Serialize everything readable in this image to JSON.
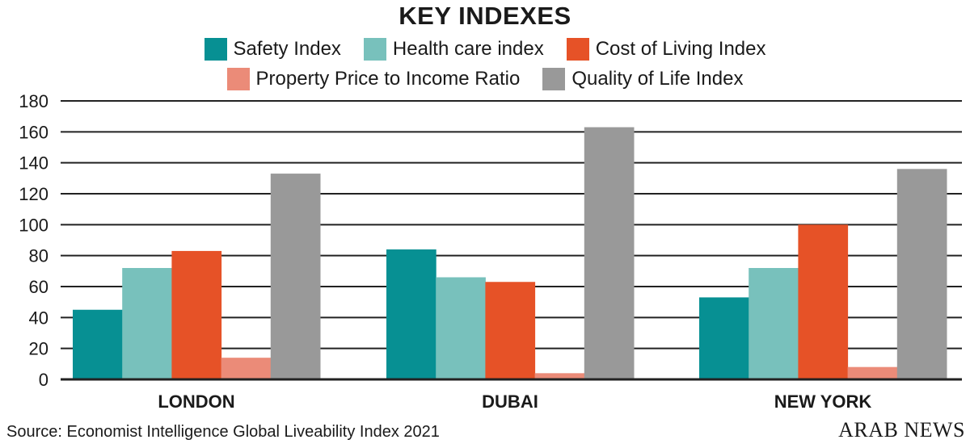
{
  "chart_data": {
    "type": "bar",
    "title": "KEY INDEXES",
    "categories": [
      "LONDON",
      "DUBAI",
      "NEW YORK"
    ],
    "series": [
      {
        "name": "Safety Index",
        "color": "#079093",
        "values": [
          45,
          84,
          53
        ]
      },
      {
        "name": "Health care index",
        "color": "#78c1bc",
        "values": [
          72,
          66,
          72
        ]
      },
      {
        "name": "Cost of Living Index",
        "color": "#e65227",
        "values": [
          83,
          63,
          100
        ]
      },
      {
        "name": "Property Price to Income Ratio",
        "color": "#eb8b78",
        "values": [
          14,
          4,
          8
        ]
      },
      {
        "name": "Quality of Life Index",
        "color": "#999999",
        "values": [
          133,
          163,
          136
        ]
      }
    ],
    "yticks": [
      0,
      20,
      40,
      60,
      80,
      100,
      120,
      140,
      160,
      180
    ],
    "ylim": [
      0,
      180
    ],
    "grid": true,
    "legend": "top"
  },
  "source": "Source: Economist Intelligence Global Liveability Index 2021",
  "logo": "ARAB NEWS"
}
